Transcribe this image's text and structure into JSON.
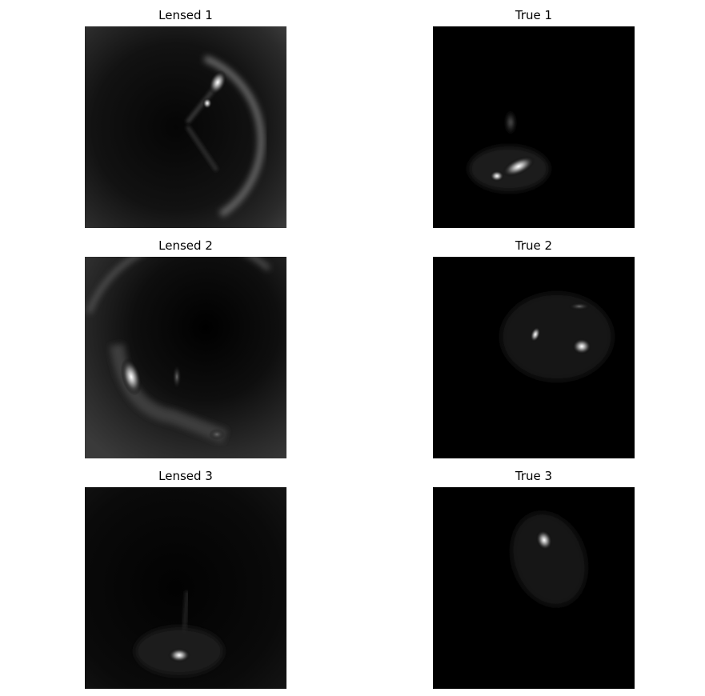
{
  "panels": [
    {
      "title": "Lensed 1"
    },
    {
      "title": "True 1"
    },
    {
      "title": "Lensed 2"
    },
    {
      "title": "True 2"
    },
    {
      "title": "Lensed 3"
    },
    {
      "title": "True 3"
    }
  ]
}
